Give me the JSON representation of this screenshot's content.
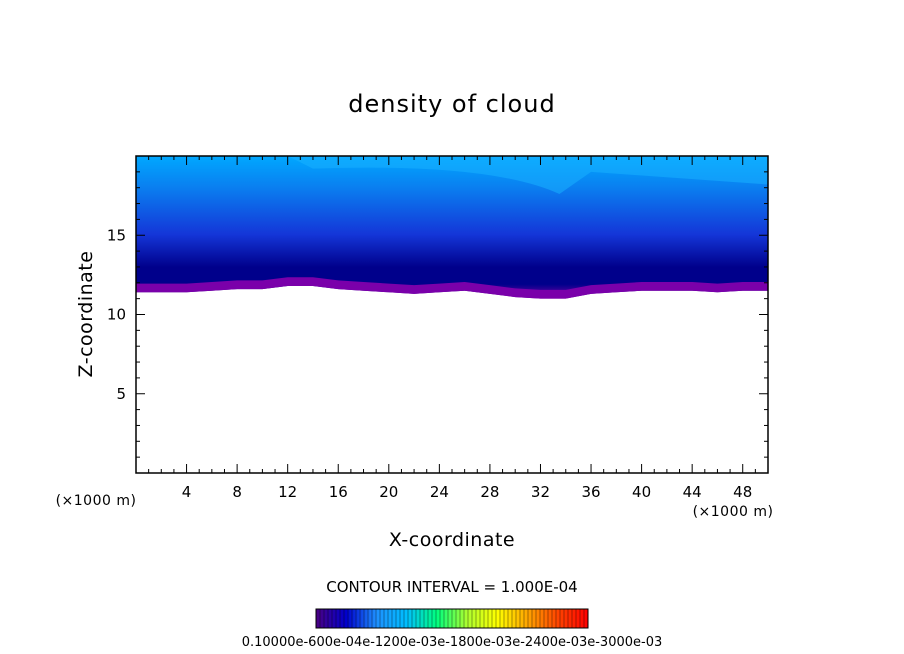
{
  "chart_data": {
    "type": "heatmap",
    "title": "density of cloud",
    "xlabel": "X-coordinate",
    "ylabel": "Z-coordinate",
    "x_unit_left": "(×1000 m)",
    "x_unit_right": "(×1000 m)",
    "xlim": [
      0,
      50
    ],
    "ylim": [
      0,
      20
    ],
    "x_ticks": [
      "4",
      "8",
      "12",
      "16",
      "20",
      "24",
      "28",
      "32",
      "36",
      "40",
      "44",
      "48"
    ],
    "y_ticks": [
      "5",
      "10",
      "15"
    ],
    "contour_interval_text": "CONTOUR INTERVAL = 1.000E-04",
    "colorbar_labels": [
      "0.1000e-05",
      "0.6000e-04",
      "0.1200e-03",
      "0.1800e-03",
      "0.2400e-03",
      "0.3000e-03"
    ],
    "colorbar_text": "0.10000e-600e-04e-1200e-03e-1800e-03e-2400e-03e-3000e-03",
    "colormap": [
      "#4b0082",
      "#0000cd",
      "#1e90ff",
      "#00bfff",
      "#00ff7f",
      "#adff2f",
      "#ffff00",
      "#ffa500",
      "#ff4500",
      "#ff0000"
    ],
    "field_colors": {
      "cloud_base": "#7a00aa",
      "deep_blue": "#00008b",
      "blue": "#1436d8",
      "mid_blue": "#0a7ff0",
      "light_blue": "#00a8ff"
    },
    "cloud_base_z": [
      [
        0,
        11.4
      ],
      [
        2,
        11.4
      ],
      [
        4,
        11.4
      ],
      [
        6,
        11.5
      ],
      [
        8,
        11.6
      ],
      [
        10,
        11.6
      ],
      [
        12,
        11.8
      ],
      [
        14,
        11.8
      ],
      [
        16,
        11.6
      ],
      [
        18,
        11.5
      ],
      [
        20,
        11.4
      ],
      [
        22,
        11.3
      ],
      [
        24,
        11.4
      ],
      [
        26,
        11.5
      ],
      [
        28,
        11.3
      ],
      [
        30,
        11.1
      ],
      [
        32,
        11.0
      ],
      [
        34,
        11.0
      ],
      [
        36,
        11.3
      ],
      [
        38,
        11.4
      ],
      [
        40,
        11.5
      ],
      [
        42,
        11.5
      ],
      [
        44,
        11.5
      ],
      [
        46,
        11.4
      ],
      [
        48,
        11.5
      ],
      [
        50,
        11.5
      ]
    ],
    "cloud_top_z": 20
  }
}
